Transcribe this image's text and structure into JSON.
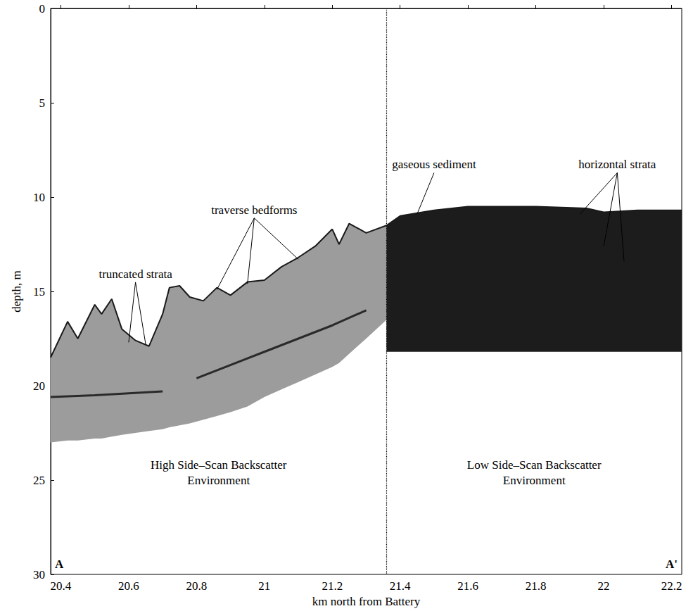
{
  "chart_data": {
    "type": "profile",
    "x_label": "km north from Battery",
    "y_label": "depth, m",
    "xlim": [
      20.37,
      22.23
    ],
    "xticks": [
      20.4,
      20.6,
      20.8,
      21,
      21.2,
      21.4,
      21.6,
      21.8,
      22,
      22.2
    ],
    "ylim": [
      0,
      30
    ],
    "yticks": [
      0,
      5,
      10,
      15,
      20,
      25,
      30
    ],
    "log": false,
    "grid": false,
    "divider": 21.36,
    "line_color": "#1a1a1a",
    "zones": [
      {
        "label": "High Side–Scan Backscatter\nEnvironment",
        "color": "#9c9c9c",
        "x": [
          20.37,
          20.42,
          20.45,
          20.5,
          20.52,
          20.55,
          20.58,
          20.62,
          20.66,
          20.7,
          20.72,
          20.75,
          20.78,
          20.82,
          20.86,
          20.9,
          20.95,
          21.0,
          21.05,
          21.1,
          21.15,
          21.2,
          21.22,
          21.25,
          21.3,
          21.36
        ],
        "top": [
          18.5,
          16.6,
          17.5,
          15.7,
          16.2,
          15.4,
          17.0,
          17.6,
          17.9,
          16.2,
          14.8,
          14.7,
          15.3,
          15.5,
          14.8,
          15.2,
          14.5,
          14.4,
          13.7,
          13.2,
          12.6,
          11.7,
          12.5,
          11.4,
          11.9,
          11.5
        ],
        "bottom": [
          23.0,
          22.9,
          22.9,
          22.8,
          22.8,
          22.7,
          22.6,
          22.5,
          22.4,
          22.3,
          22.2,
          22.1,
          22.0,
          21.8,
          21.6,
          21.4,
          21.1,
          20.6,
          20.2,
          19.8,
          19.4,
          19.0,
          18.8,
          18.3,
          17.5,
          16.5
        ]
      },
      {
        "label": "Low Side–Scan Backscatter\nEnvironment",
        "color": "#1c1c1c",
        "x": [
          21.36,
          21.4,
          21.5,
          21.6,
          21.8,
          21.95,
          22.0,
          22.1,
          22.23
        ],
        "top": [
          11.5,
          11.0,
          10.7,
          10.5,
          10.5,
          10.6,
          10.8,
          10.7,
          10.7
        ],
        "bottom": [
          18.2,
          18.2,
          18.2,
          18.2,
          18.2,
          18.2,
          18.2,
          18.2,
          18.2
        ]
      }
    ],
    "reflectors": {
      "color": "#2a2a2a",
      "lines": [
        {
          "x": [
            20.37,
            20.5,
            20.7
          ],
          "depth": [
            20.6,
            20.5,
            20.3
          ]
        },
        {
          "x": [
            20.8,
            21.0,
            21.2,
            21.3
          ],
          "depth": [
            19.6,
            18.2,
            16.8,
            16.0
          ]
        }
      ]
    },
    "annotations": [
      {
        "text": "truncated strata",
        "x": 20.62,
        "y": 14.4,
        "points": [
          [
            20.6,
            17.7
          ],
          [
            20.65,
            17.8
          ]
        ]
      },
      {
        "text": "traverse bedforms",
        "x": 20.97,
        "y": 11.0,
        "points": [
          [
            20.86,
            14.9
          ],
          [
            20.95,
            14.6
          ],
          [
            21.1,
            13.3
          ]
        ]
      },
      {
        "text": "gaseous sediment",
        "x": 21.5,
        "y": 8.6,
        "points": [
          [
            21.45,
            10.9
          ]
        ]
      },
      {
        "text": "horizontal strata",
        "x": 22.04,
        "y": 8.6,
        "points": [
          [
            21.93,
            10.9
          ],
          [
            22.0,
            12.6
          ],
          [
            22.06,
            13.4
          ]
        ]
      }
    ],
    "corner_labels": [
      "A",
      "A'"
    ]
  }
}
